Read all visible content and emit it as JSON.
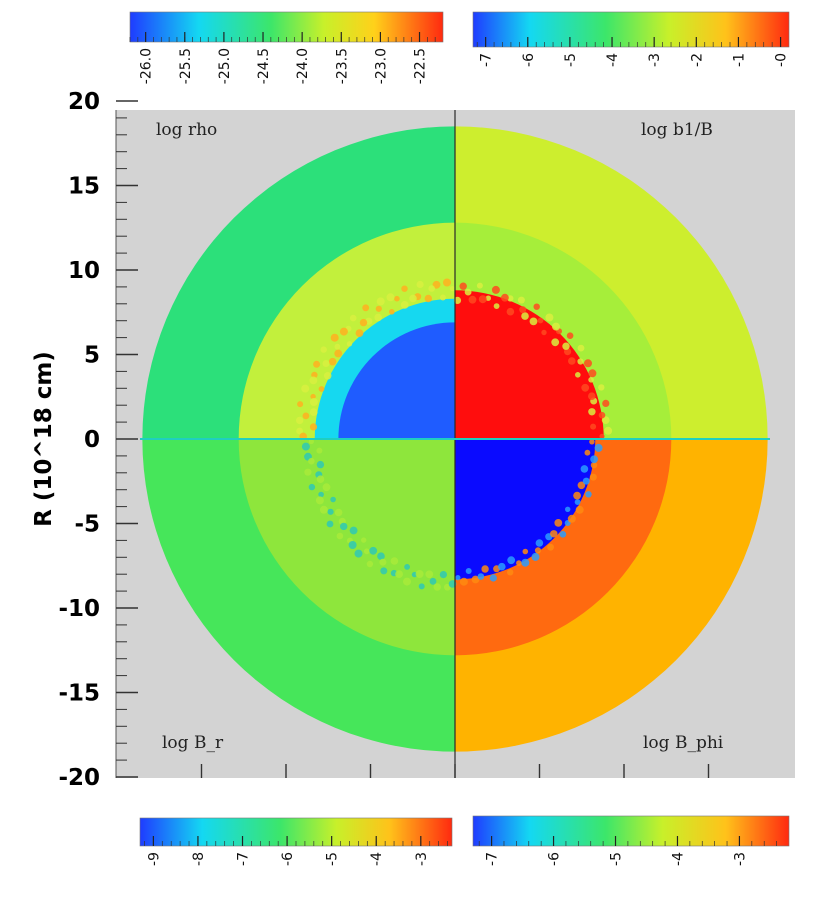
{
  "chart_data": {
    "type": "heatmap",
    "ylabel": "R (10^18 cm)",
    "ylim": [
      -20,
      20
    ],
    "xlim": [
      -20,
      20
    ],
    "y_ticks": [
      "20",
      "15",
      "10",
      "5",
      "0",
      "-5",
      "-10",
      "-15",
      "-20"
    ],
    "grid": false,
    "background_color": "#d3d3d3",
    "panels": [
      {
        "quadrant": "top-left",
        "label": "log rho",
        "colorbar": {
          "ticks": [
            "-26.0",
            "-25.5",
            "-25.0",
            "-24.5",
            "-24.0",
            "-23.5",
            "-23.0",
            "-22.5"
          ],
          "range": [
            -26.2,
            -22.2
          ]
        },
        "shells": [
          {
            "r_outer": 18.5,
            "r_inner": 12.8,
            "value": -24.5,
            "color": "#2ce07a"
          },
          {
            "r_outer": 12.8,
            "r_inner": 8.3,
            "value": -23.7,
            "color": "#c2f03c"
          },
          {
            "r_outer": 8.3,
            "r_inner": 6.9,
            "value": -25.0,
            "color": "#16d8f0"
          },
          {
            "r_outer": 6.9,
            "r_inner": 0,
            "value": -26.0,
            "color": "#1f5cff"
          }
        ]
      },
      {
        "quadrant": "top-right",
        "label": "log b1/B",
        "colorbar": {
          "ticks": [
            "-7",
            "-6",
            "-5",
            "-4",
            "-3",
            "-2",
            "-1",
            "-0"
          ],
          "range": [
            -7.3,
            0.2
          ]
        },
        "shells": [
          {
            "r_outer": 18.5,
            "r_inner": 12.8,
            "value": -2.3,
            "color": "#cdee2e"
          },
          {
            "r_outer": 12.8,
            "r_inner": 8.8,
            "value": -2.8,
            "color": "#a6ee3a"
          },
          {
            "r_outer": 8.8,
            "r_inner": 0,
            "value": 0.0,
            "color": "#ff0d0d"
          }
        ]
      },
      {
        "quadrant": "bottom-left",
        "label": "log B_r",
        "colorbar": {
          "ticks": [
            "-9",
            "-8",
            "-7",
            "-6",
            "-5",
            "-4",
            "-3"
          ],
          "range": [
            -9.3,
            -2.3
          ]
        },
        "shells": [
          {
            "r_outer": 18.5,
            "r_inner": 12.8,
            "value": -6.0,
            "color": "#46e65a"
          },
          {
            "r_outer": 12.8,
            "r_inner": 0,
            "value": -5.3,
            "color": "#8ee63c"
          }
        ]
      },
      {
        "quadrant": "bottom-right",
        "label": "log B_phi",
        "colorbar": {
          "ticks": [
            "-7",
            "-6",
            "-5",
            "-4",
            "-3"
          ],
          "range": [
            -7.3,
            -2.2
          ]
        },
        "shells": [
          {
            "r_outer": 18.5,
            "r_inner": 12.8,
            "value": -3.3,
            "color": "#ffb300"
          },
          {
            "r_outer": 12.8,
            "r_inner": 8.3,
            "value": -2.8,
            "color": "#ff6a10"
          },
          {
            "r_outer": 8.3,
            "r_inner": 0,
            "value": -7.0,
            "color": "#0a0aff"
          }
        ]
      }
    ]
  }
}
